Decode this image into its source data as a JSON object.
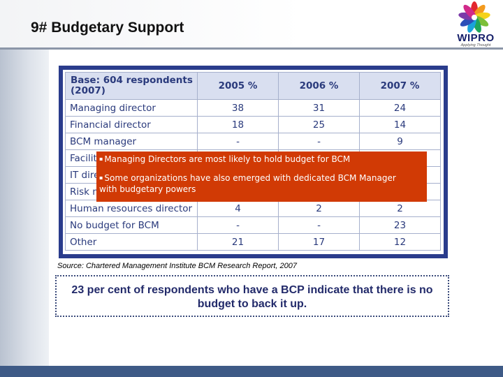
{
  "slide": {
    "title": "9# Budgetary Support",
    "logo_text": "WIPRO",
    "logo_tagline": "Applying Thought"
  },
  "table": {
    "headers": [
      "Base: 604 respondents (2007)",
      "2005 %",
      "2006 %",
      "2007 %"
    ],
    "rows": [
      [
        "Managing director",
        "38",
        "31",
        "24"
      ],
      [
        "Financial director",
        "18",
        "25",
        "14"
      ],
      [
        "BCM manager",
        "-",
        "-",
        "9"
      ],
      [
        "Facilities manager",
        "",
        "",
        ""
      ],
      [
        "IT director",
        "",
        "",
        ""
      ],
      [
        "Risk manager",
        "",
        "",
        ""
      ],
      [
        "Human resources director",
        "4",
        "2",
        "2"
      ],
      [
        "No budget for BCM",
        "-",
        "-",
        "23"
      ],
      [
        "Other",
        "21",
        "17",
        "12"
      ]
    ]
  },
  "callout": {
    "bullet1": "Managing Directors are most likely to hold budget for BCM",
    "bullet2": "Some organizations have also emerged with dedicated BCM Manager with budgetary powers"
  },
  "source": "Source: Chartered Management Institute BCM Research Report, 2007",
  "note": "23 per cent of respondents who have a BCP indicate that there is no budget to back it up.",
  "colors": {
    "table_border": "#2a3c8c",
    "header_fill": "#d9dff0",
    "callout_fill": "#d13a05",
    "bottom_bar": "#3e5a86"
  }
}
